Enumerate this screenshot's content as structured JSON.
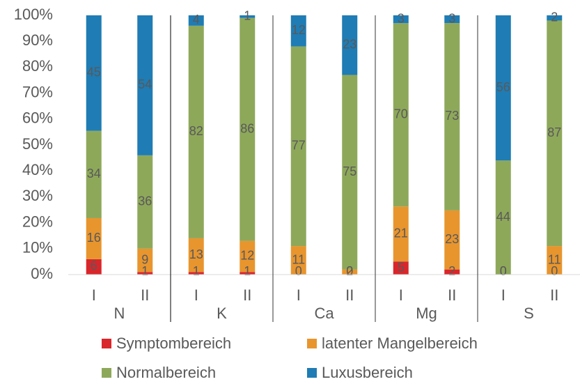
{
  "chart_data": {
    "type": "bar",
    "stacked": "percent",
    "yticks": [
      "0%",
      "10%",
      "20%",
      "30%",
      "40%",
      "50%",
      "60%",
      "70%",
      "80%",
      "90%",
      "100%"
    ],
    "ylim": [
      0,
      100
    ],
    "groups": [
      {
        "name": "N",
        "subcategories": [
          "I",
          "II"
        ]
      },
      {
        "name": "K",
        "subcategories": [
          "I",
          "II"
        ]
      },
      {
        "name": "Ca",
        "subcategories": [
          "I",
          "II"
        ]
      },
      {
        "name": "Mg",
        "subcategories": [
          "I",
          "II"
        ]
      },
      {
        "name": "S",
        "subcategories": [
          "I",
          "II"
        ]
      }
    ],
    "categories": [
      "N I",
      "N II",
      "K I",
      "K II",
      "Ca I",
      "Ca II",
      "Mg I",
      "Mg II",
      "S I",
      "S II"
    ],
    "series": [
      {
        "name": "Symptombereich",
        "color": "#d9262b",
        "values": [
          6,
          1,
          1,
          1,
          0,
          0,
          5,
          2,
          0,
          0
        ],
        "labels": [
          "6",
          "1",
          "1",
          "1",
          "0",
          "0",
          "5",
          "2",
          "0",
          "0"
        ]
      },
      {
        "name": "latenter Mangelbereich",
        "color": "#e8952e",
        "values": [
          16,
          9,
          13,
          12,
          11,
          2,
          21,
          23,
          0,
          11
        ],
        "labels": [
          "16",
          "9",
          "13",
          "12",
          "11",
          "2",
          "21",
          "23",
          "0",
          "11"
        ]
      },
      {
        "name": "Normalbereich",
        "color": "#8ea85a",
        "values": [
          34,
          36,
          82,
          86,
          77,
          75,
          70,
          73,
          44,
          87
        ],
        "labels": [
          "34",
          "36",
          "82",
          "86",
          "77",
          "75",
          "70",
          "73",
          "44",
          "87"
        ]
      },
      {
        "name": "Luxusbereich",
        "color": "#1f7cb4",
        "values": [
          45,
          54,
          4,
          1,
          12,
          23,
          3,
          3,
          56,
          2
        ],
        "labels": [
          "45",
          "54",
          "4",
          "1",
          "12",
          "23",
          "3",
          "3",
          "56",
          "2"
        ]
      }
    ],
    "legend_position": "bottom",
    "grid": false
  }
}
